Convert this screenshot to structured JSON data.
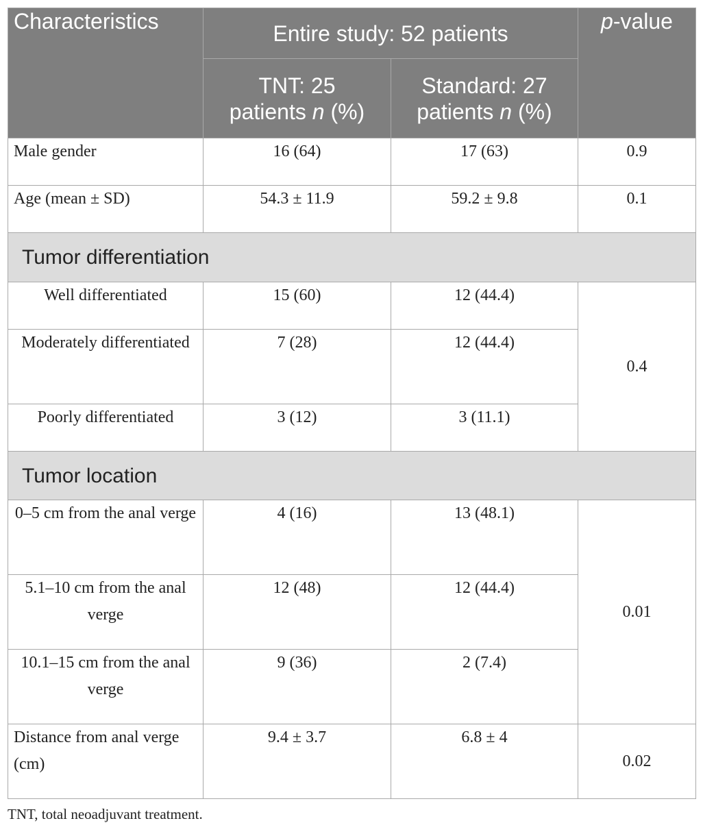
{
  "header": {
    "characteristics": "Characteristics",
    "entire_study": "Entire study: 52 patients",
    "p_italic": "p",
    "p_rest": "-value",
    "tnt_line1": "TNT: 25",
    "tnt_line2_pre": "patients ",
    "tnt_line2_n": "n",
    "tnt_line2_post": " (%)",
    "std_line1": "Standard: 27",
    "std_line2_pre": "patients ",
    "std_line2_n": "n",
    "std_line2_post": " (%)"
  },
  "rows": {
    "male_gender": {
      "label": "Male gender",
      "tnt": "16 (64)",
      "std": "17 (63)",
      "p": "0.9"
    },
    "age": {
      "label": "Age (mean ± SD)",
      "tnt": "54.3 ± 11.9",
      "std": "59.2 ± 9.8",
      "p": "0.1"
    },
    "differentiation_section": "Tumor differentiation",
    "well": {
      "label": "Well differentiated",
      "tnt": "15 (60)",
      "std": "12 (44.4)"
    },
    "moderately": {
      "label": "Moderately differentiated",
      "tnt": "7 (28)",
      "std": "12 (44.4)"
    },
    "poorly": {
      "label": "Poorly differentiated",
      "tnt": "3 (12)",
      "std": "3 (11.1)"
    },
    "differentiation_p": "0.4",
    "location_section": "Tumor location",
    "loc_0_5": {
      "label": "0–5 cm from the anal verge",
      "tnt": "4 (16)",
      "std": "13 (48.1)"
    },
    "loc_5_10": {
      "label": "5.1–10 cm from the anal verge",
      "tnt": "12 (48)",
      "std": "12 (44.4)"
    },
    "loc_10_15": {
      "label": "10.1–15 cm from the anal verge",
      "tnt": "9 (36)",
      "std": "2 (7.4)"
    },
    "location_p": "0.01",
    "distance": {
      "label": "Distance from anal verge (cm)",
      "tnt": "9.4 ± 3.7",
      "std": "6.8 ± 4",
      "p": "0.02"
    }
  },
  "footnote": "TNT, total neoadjuvant treatment."
}
